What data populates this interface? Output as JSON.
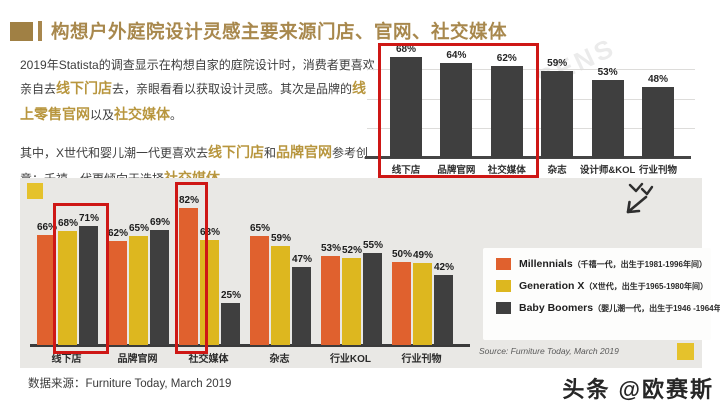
{
  "page": {
    "title": "构想户外庭院设计灵感主要来源门店、官网、社交媒体",
    "data_source_footer": "数据来源：Furniture Today, March 2019",
    "watermark_badge": "头条 @欧赛斯",
    "background_watermark": "SENS"
  },
  "intro": {
    "paragraphs": [
      [
        {
          "text": "2019年Statista的调查显示在构想自家的庭院设计时，消费者更喜欢亲自去"
        },
        {
          "text": "线下门店",
          "highlight": true
        },
        {
          "text": "去，亲眼看看以获取设计灵感。其次是品牌的"
        },
        {
          "text": "线上零售官网",
          "highlight": true
        },
        {
          "text": "以及"
        },
        {
          "text": "社交媒体",
          "highlight": true
        },
        {
          "text": "。"
        }
      ],
      [
        {
          "text": "其中，X世代和婴儿潮一代更喜欢去"
        },
        {
          "text": "线下门店",
          "highlight": true
        },
        {
          "text": "和"
        },
        {
          "text": "品牌官网",
          "highlight": true
        },
        {
          "text": "参考创意；千禧一代更倾向于选择"
        },
        {
          "text": "社交媒体",
          "highlight": true
        },
        {
          "text": "。"
        }
      ]
    ]
  },
  "chart_data": [
    {
      "type": "bar",
      "title": "",
      "categories": [
        "线下店",
        "品牌官网",
        "社交媒体",
        "杂志",
        "设计师&KOL",
        "行业刊物"
      ],
      "values": [
        68,
        64,
        62,
        59,
        53,
        48
      ],
      "unit": "%",
      "bar_color": "#3f3f3f",
      "ylim": [
        0,
        75
      ],
      "grid": true,
      "annotation": "red box highlights first three bars"
    },
    {
      "type": "bar",
      "categories": [
        "线下店",
        "品牌官网",
        "社交媒体",
        "杂志",
        "行业KOL",
        "行业刊物"
      ],
      "series": [
        {
          "name": "Millennials",
          "detail": "（千禧一代，出生于1981-1996年间）",
          "color": "#e0612e",
          "values": [
            66,
            62,
            82,
            65,
            53,
            50
          ]
        },
        {
          "name": "Generation X",
          "detail": "（X世代，出生于1965-1980年间）",
          "color": "#ddb71f",
          "values": [
            68,
            65,
            63,
            59,
            52,
            49
          ]
        },
        {
          "name": "Baby Boomers",
          "detail": "（婴儿潮一代，出生于1946 -1964年间）",
          "color": "#3f3f3f",
          "values": [
            71,
            69,
            25,
            47,
            55,
            42
          ]
        }
      ],
      "unit": "%",
      "ylim": [
        0,
        100
      ],
      "legend_position": "right",
      "source": "Source: Furniture Today, March 2019",
      "annotation": "red boxes highlight GenX+Boomers of 线下店 and Millennials of 社交媒体"
    }
  ],
  "colors": {
    "accent_gold": "#a8884d",
    "highlight_gold": "#b8963e",
    "annotation_red": "#ce1715",
    "orange": "#e0612e",
    "yellow": "#ddb71f",
    "dark_bar": "#3f3f3f",
    "panel_gray": "#e9e8e5"
  }
}
